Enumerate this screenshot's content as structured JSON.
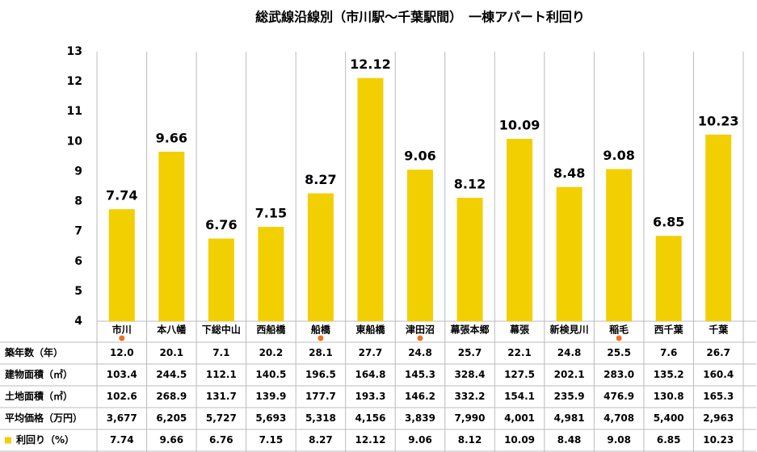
{
  "chart_data": {
    "type": "bar",
    "title": "総武線沿線別（市川駅～千葉駅間）　一棟アパート利回り",
    "categories": [
      "市川",
      "本八幡",
      "下総中山",
      "西船橋",
      "船橋",
      "東船橋",
      "津田沼",
      "幕張本郷",
      "幕張",
      "新検見川",
      "稲毛",
      "西千葉",
      "千葉"
    ],
    "highlighted": [
      true,
      false,
      false,
      false,
      true,
      false,
      true,
      false,
      false,
      false,
      true,
      false,
      false
    ],
    "highlight_color": "#f07020",
    "series": [
      {
        "name": "利回り（%）",
        "color": "#f2cf00",
        "label_color": "#9c5a1e",
        "values": [
          7.74,
          9.66,
          6.76,
          7.15,
          8.27,
          12.12,
          9.06,
          8.12,
          10.09,
          8.48,
          9.08,
          6.85,
          10.23
        ]
      }
    ],
    "ylim": [
      4,
      13
    ],
    "yticks": [
      4,
      5,
      6,
      7,
      8,
      9,
      10,
      11,
      12,
      13
    ],
    "grid": false,
    "table": {
      "rows": [
        {
          "label": "築年数（年）",
          "cells": [
            "12.0",
            "20.1",
            "7.1",
            "20.2",
            "28.1",
            "27.7",
            "24.8",
            "25.7",
            "22.1",
            "24.8",
            "25.5",
            "7.6",
            "26.7"
          ]
        },
        {
          "label": "建物面積（㎡）",
          "cells": [
            "103.4",
            "244.5",
            "112.1",
            "140.5",
            "196.5",
            "164.8",
            "145.3",
            "328.4",
            "127.5",
            "202.1",
            "283.0",
            "135.2",
            "160.4"
          ]
        },
        {
          "label": "土地面積（㎡）",
          "cells": [
            "102.6",
            "268.9",
            "131.7",
            "139.9",
            "177.7",
            "193.3",
            "146.2",
            "332.2",
            "154.1",
            "235.9",
            "476.9",
            "130.8",
            "165.3"
          ]
        },
        {
          "label": "平均価格（万円）",
          "cells": [
            "3,677",
            "6,205",
            "5,727",
            "5,693",
            "5,318",
            "4,156",
            "3,839",
            "7,990",
            "4,001",
            "4,981",
            "4,708",
            "5,400",
            "2,963"
          ]
        }
      ]
    }
  }
}
